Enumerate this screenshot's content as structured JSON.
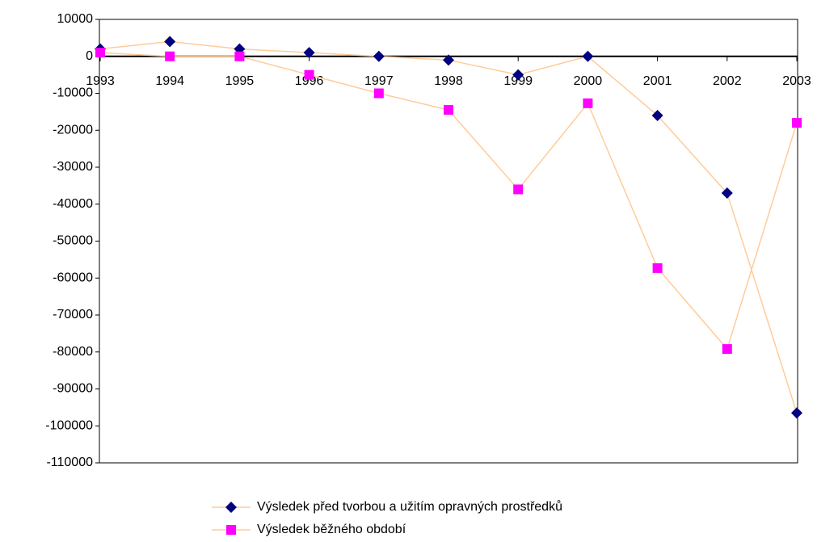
{
  "chart_data": {
    "type": "line",
    "categories": [
      "1993",
      "1994",
      "1995",
      "1996",
      "1997",
      "1998",
      "1999",
      "2000",
      "2001",
      "2002",
      "2003"
    ],
    "series": [
      {
        "name": "Výsledek před tvorbou a užitím opravných prostředků",
        "color": "#000080",
        "marker": "diamond",
        "line_color": "#ffcc99",
        "values": [
          2000,
          4000,
          2000,
          1000,
          0,
          -1000,
          -5000,
          0,
          -16000,
          -37000,
          -96500
        ]
      },
      {
        "name": "Výsledek běžného období",
        "color": "#ff00ff",
        "marker": "square",
        "line_color": "#ffcc99",
        "values": [
          1000,
          0,
          0,
          -5000,
          -10000,
          -14500,
          -36000,
          -12700,
          -57300,
          -79200,
          -18000
        ]
      }
    ],
    "ylim": [
      -110000,
      10000
    ],
    "yticks": [
      10000,
      0,
      -10000,
      -20000,
      -30000,
      -40000,
      -50000,
      -60000,
      -70000,
      -80000,
      -90000,
      -100000,
      -110000
    ],
    "grid": false,
    "legend": "bottom"
  }
}
